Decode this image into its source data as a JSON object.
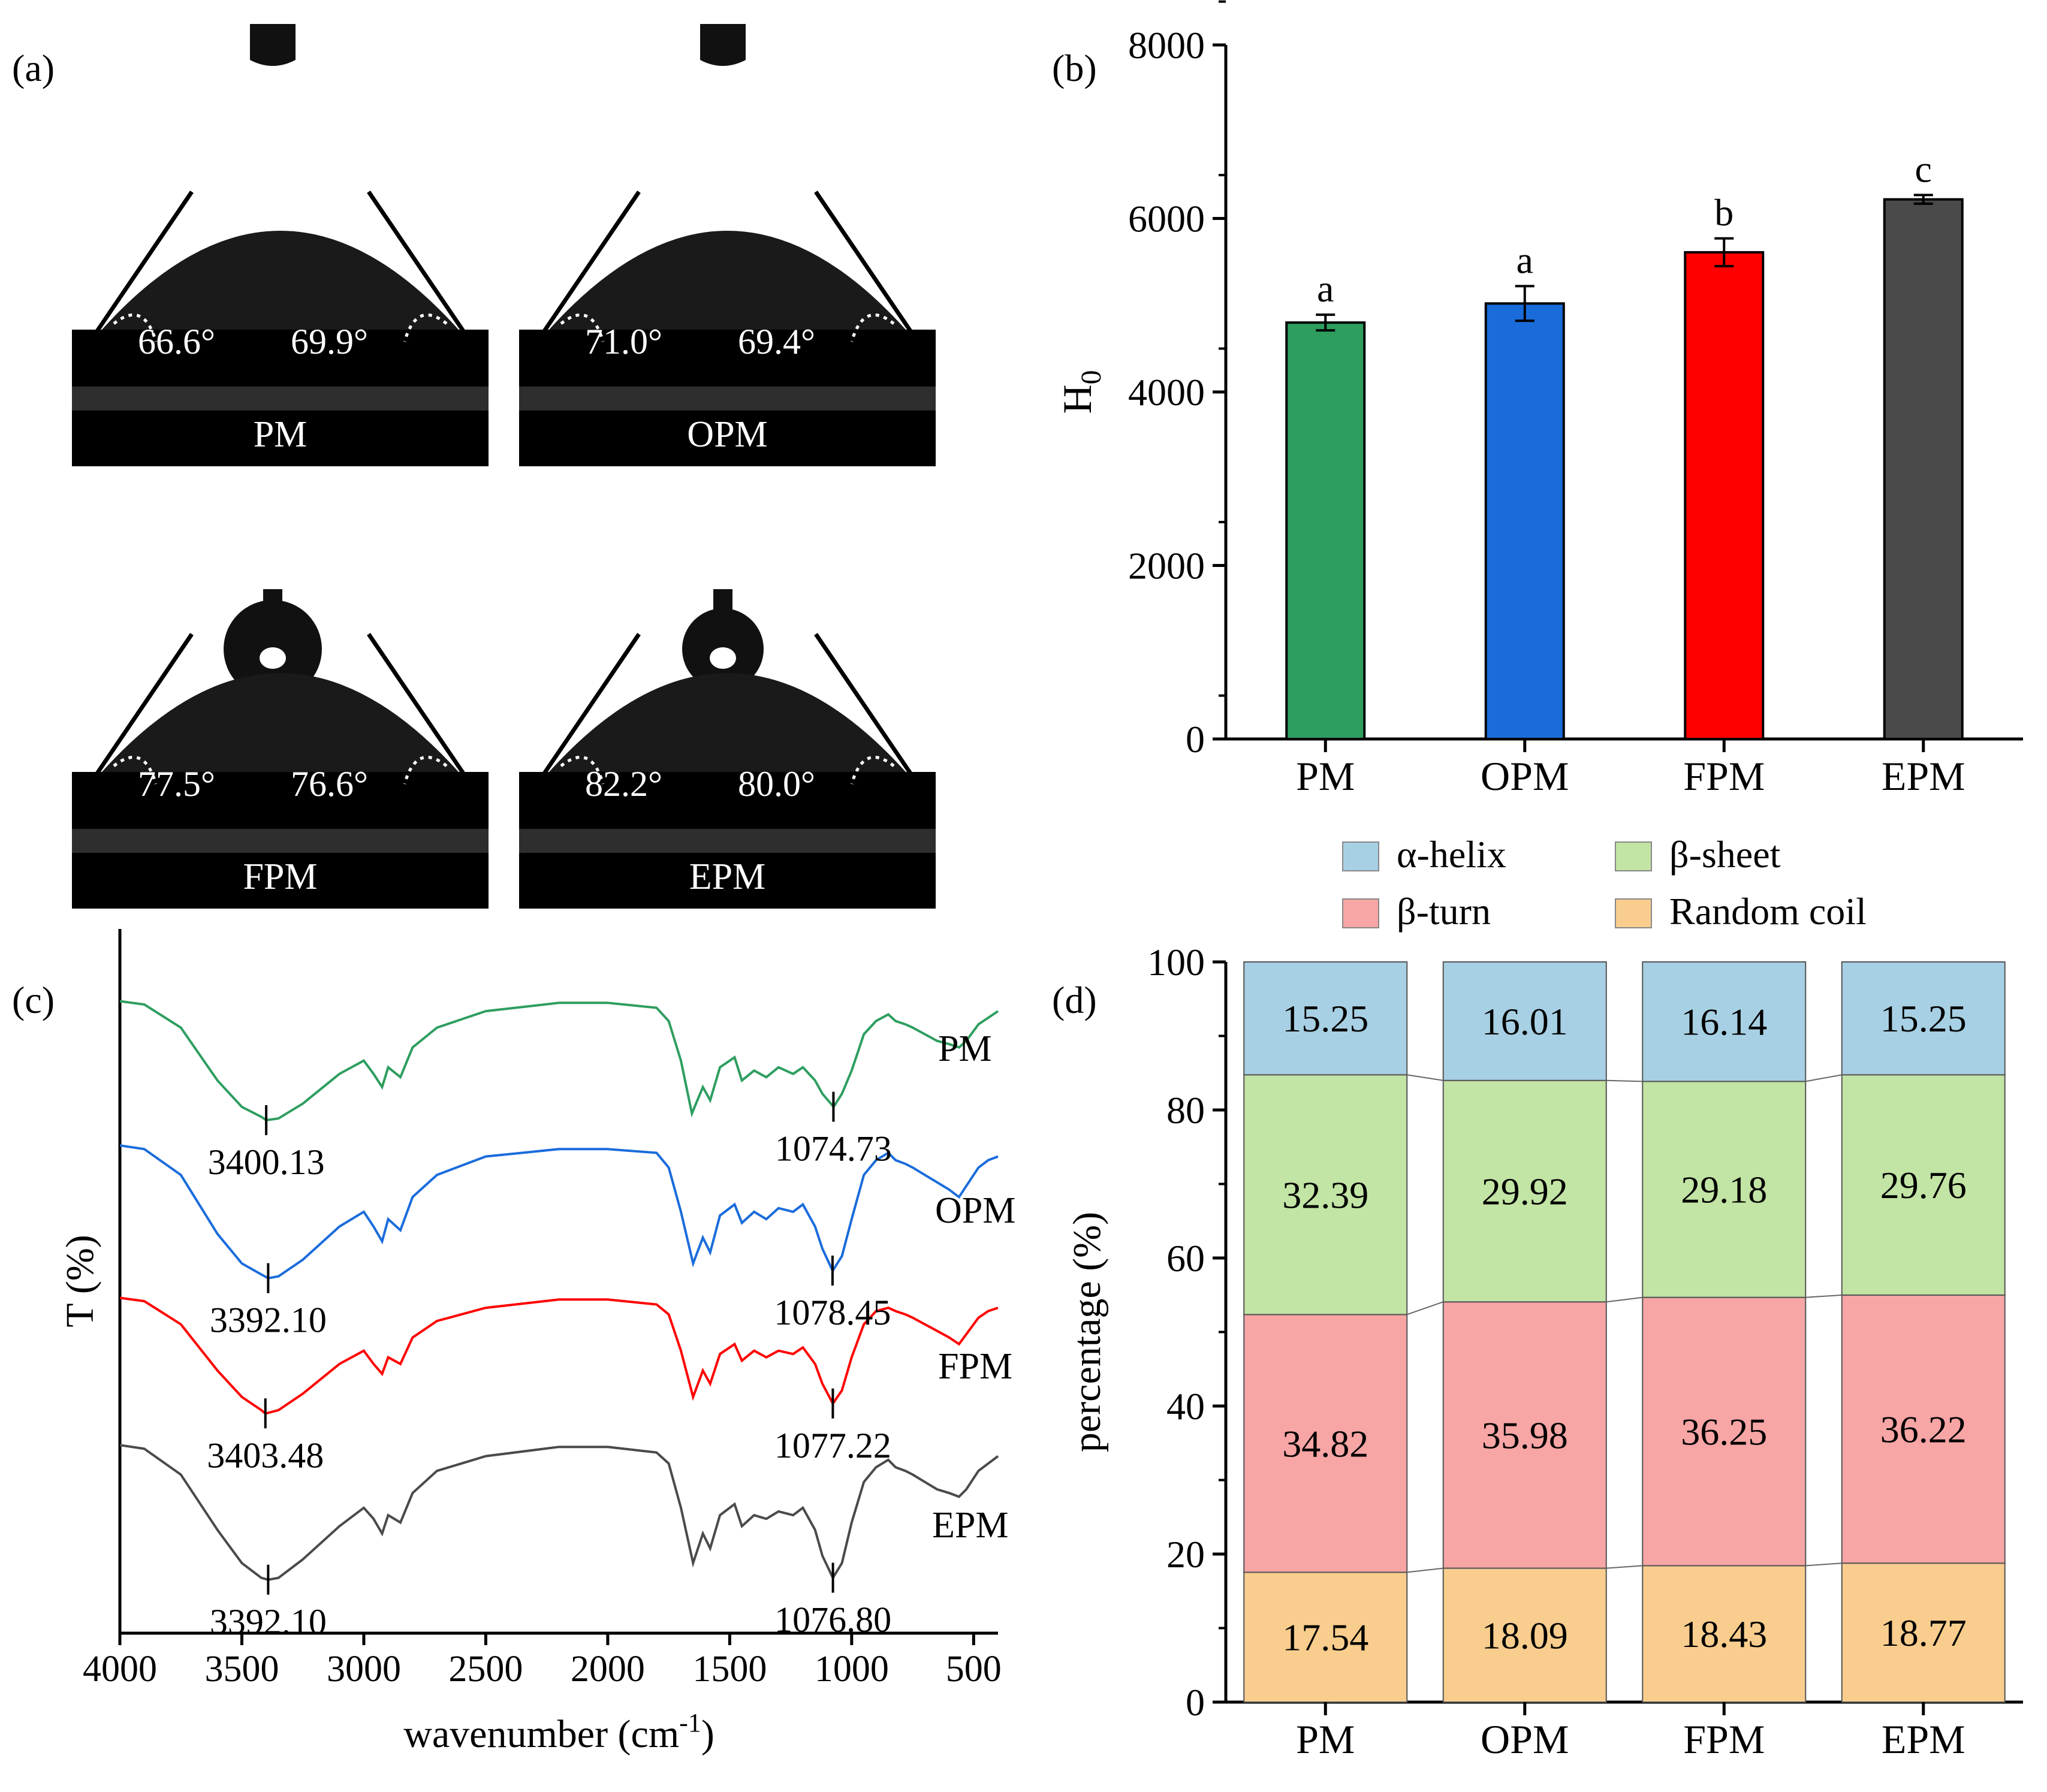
{
  "panel_labels": {
    "a": "(a)",
    "b": "(b)",
    "c": "(c)",
    "d": "(d)"
  },
  "colors": {
    "PM": "#2e9e5f",
    "OPM": "#1a6cdb",
    "FPM": "#ff0000",
    "EPM": "#4a4a4a",
    "alpha_helix": "#a8d0e4",
    "beta_sheet": "#c2e4a4",
    "beta_turn": "#f7a5a5",
    "random_coil": "#f8cd8d",
    "photo_bg": "#000000",
    "droplet": "#1a1a1a",
    "substrate": "#3a3a3a"
  },
  "contact_angle": {
    "samples": [
      {
        "name": "PM",
        "left": "66.6°",
        "right": "69.9°"
      },
      {
        "name": "OPM",
        "left": "71.0°",
        "right": "69.4°"
      },
      {
        "name": "FPM",
        "left": "77.5°",
        "right": "76.6°"
      },
      {
        "name": "EPM",
        "left": "82.2°",
        "right": "80.0°"
      }
    ]
  },
  "chart_data": [
    {
      "panel": "b",
      "type": "bar",
      "title": "",
      "xlabel": "",
      "ylabel": "H",
      "ylabel_sub": "0",
      "categories": [
        "PM",
        "OPM",
        "FPM",
        "EPM"
      ],
      "values": [
        4800,
        5020,
        5610,
        6220
      ],
      "errors": [
        90,
        200,
        160,
        50
      ],
      "letters": [
        "a",
        "a",
        "b",
        "c"
      ],
      "ylim": [
        0,
        8000
      ],
      "yticks": [
        "0",
        "2000",
        "4000",
        "6000",
        "8000"
      ],
      "grid": false
    },
    {
      "panel": "c",
      "type": "line",
      "title": "",
      "xlabel": "wavenumber (cm",
      "xlabel_sup": "-1",
      "xlabel_end": ")",
      "ylabel": "T (%)",
      "xlim": [
        4000,
        400
      ],
      "xticks": [
        "4000",
        "3500",
        "3000",
        "2500",
        "2000",
        "1500",
        "1000",
        "500"
      ],
      "series": [
        {
          "name": "PM",
          "offset": 0,
          "points": [
            [
              4000,
              96
            ],
            [
              3900,
              95
            ],
            [
              3750,
              88
            ],
            [
              3600,
              72
            ],
            [
              3500,
              64
            ],
            [
              3420,
              61
            ],
            [
              3400,
              60
            ],
            [
              3350,
              60.5
            ],
            [
              3250,
              65
            ],
            [
              3100,
              74
            ],
            [
              3000,
              78
            ],
            [
              2960,
              74
            ],
            [
              2925,
              70
            ],
            [
              2900,
              76
            ],
            [
              2850,
              73
            ],
            [
              2800,
              82
            ],
            [
              2700,
              88
            ],
            [
              2500,
              93
            ],
            [
              2200,
              95.5
            ],
            [
              2000,
              95.5
            ],
            [
              1800,
              94
            ],
            [
              1750,
              90
            ],
            [
              1700,
              78
            ],
            [
              1655,
              62
            ],
            [
              1610,
              70
            ],
            [
              1580,
              66
            ],
            [
              1540,
              76
            ],
            [
              1480,
              79
            ],
            [
              1450,
              72
            ],
            [
              1400,
              75
            ],
            [
              1350,
              73
            ],
            [
              1300,
              76
            ],
            [
              1240,
              74
            ],
            [
              1200,
              76
            ],
            [
              1150,
              72
            ],
            [
              1120,
              68
            ],
            [
              1074,
              64
            ],
            [
              1040,
              68
            ],
            [
              1000,
              75
            ],
            [
              950,
              86
            ],
            [
              900,
              90
            ],
            [
              850,
              92
            ],
            [
              820,
              90
            ],
            [
              780,
              89
            ],
            [
              750,
              88
            ],
            [
              700,
              86
            ],
            [
              650,
              84
            ],
            [
              600,
              83
            ],
            [
              560,
              82
            ],
            [
              530,
              84
            ],
            [
              480,
              89
            ],
            [
              440,
              91
            ],
            [
              400,
              93
            ]
          ]
        },
        {
          "name": "OPM",
          "offset": 0,
          "points": [
            [
              4000,
              96
            ],
            [
              3900,
              95
            ],
            [
              3750,
              88
            ],
            [
              3600,
              72
            ],
            [
              3500,
              64
            ],
            [
              3420,
              61
            ],
            [
              3392,
              60
            ],
            [
              3350,
              60.5
            ],
            [
              3250,
              65
            ],
            [
              3100,
              74
            ],
            [
              3000,
              78
            ],
            [
              2960,
              74
            ],
            [
              2925,
              70
            ],
            [
              2900,
              76
            ],
            [
              2850,
              73
            ],
            [
              2800,
              82
            ],
            [
              2700,
              88
            ],
            [
              2500,
              93
            ],
            [
              2200,
              95
            ],
            [
              2000,
              95
            ],
            [
              1800,
              94
            ],
            [
              1750,
              90
            ],
            [
              1700,
              78
            ],
            [
              1650,
              64
            ],
            [
              1610,
              71
            ],
            [
              1580,
              67
            ],
            [
              1540,
              77
            ],
            [
              1480,
              80
            ],
            [
              1450,
              75
            ],
            [
              1400,
              78
            ],
            [
              1350,
              76
            ],
            [
              1300,
              79
            ],
            [
              1240,
              78
            ],
            [
              1200,
              80
            ],
            [
              1150,
              74
            ],
            [
              1120,
              68
            ],
            [
              1078,
              62
            ],
            [
              1040,
              66
            ],
            [
              1000,
              76
            ],
            [
              950,
              88
            ],
            [
              900,
              92
            ],
            [
              850,
              94
            ],
            [
              820,
              92
            ],
            [
              780,
              91
            ],
            [
              750,
              90
            ],
            [
              700,
              88
            ],
            [
              650,
              86
            ],
            [
              600,
              84
            ],
            [
              560,
              82
            ],
            [
              530,
              85
            ],
            [
              480,
              90
            ],
            [
              440,
              92
            ],
            [
              400,
              93
            ]
          ]
        },
        {
          "name": "FPM",
          "offset": 0,
          "points": [
            [
              4000,
              96
            ],
            [
              3900,
              95
            ],
            [
              3750,
              88
            ],
            [
              3600,
              74
            ],
            [
              3500,
              66
            ],
            [
              3420,
              62
            ],
            [
              3403,
              61
            ],
            [
              3350,
              62
            ],
            [
              3250,
              67
            ],
            [
              3100,
              76
            ],
            [
              3000,
              80
            ],
            [
              2960,
              76
            ],
            [
              2925,
              73
            ],
            [
              2900,
              78
            ],
            [
              2850,
              76
            ],
            [
              2800,
              84
            ],
            [
              2700,
              89
            ],
            [
              2500,
              93
            ],
            [
              2200,
              95.5
            ],
            [
              2000,
              95.5
            ],
            [
              1800,
              94
            ],
            [
              1750,
              91
            ],
            [
              1700,
              80
            ],
            [
              1650,
              66
            ],
            [
              1610,
              74
            ],
            [
              1580,
              70
            ],
            [
              1540,
              79
            ],
            [
              1480,
              82
            ],
            [
              1450,
              77
            ],
            [
              1400,
              80
            ],
            [
              1350,
              78
            ],
            [
              1300,
              80
            ],
            [
              1240,
              79
            ],
            [
              1200,
              81
            ],
            [
              1150,
              76
            ],
            [
              1120,
              70
            ],
            [
              1077,
              64
            ],
            [
              1040,
              68
            ],
            [
              1000,
              78
            ],
            [
              950,
              88
            ],
            [
              900,
              92
            ],
            [
              850,
              93
            ],
            [
              820,
              92
            ],
            [
              780,
              91
            ],
            [
              750,
              90
            ],
            [
              700,
              88
            ],
            [
              650,
              86
            ],
            [
              600,
              84
            ],
            [
              560,
              82
            ],
            [
              530,
              85
            ],
            [
              480,
              90
            ],
            [
              440,
              92
            ],
            [
              400,
              93
            ]
          ]
        },
        {
          "name": "EPM",
          "offset": 0,
          "points": [
            [
              4000,
              96
            ],
            [
              3900,
              95
            ],
            [
              3750,
              88
            ],
            [
              3600,
              73
            ],
            [
              3500,
              64
            ],
            [
              3420,
              60
            ],
            [
              3392,
              59.5
            ],
            [
              3350,
              60
            ],
            [
              3250,
              65
            ],
            [
              3100,
              74
            ],
            [
              3000,
              79
            ],
            [
              2960,
              76
            ],
            [
              2925,
              72
            ],
            [
              2900,
              77
            ],
            [
              2850,
              75
            ],
            [
              2800,
              83
            ],
            [
              2700,
              89
            ],
            [
              2500,
              93
            ],
            [
              2200,
              95.5
            ],
            [
              2000,
              95.5
            ],
            [
              1800,
              94
            ],
            [
              1750,
              91
            ],
            [
              1700,
              79
            ],
            [
              1650,
              64
            ],
            [
              1610,
              72
            ],
            [
              1580,
              68
            ],
            [
              1540,
              77
            ],
            [
              1480,
              80
            ],
            [
              1450,
              74
            ],
            [
              1400,
              77
            ],
            [
              1350,
              76
            ],
            [
              1300,
              78
            ],
            [
              1240,
              77
            ],
            [
              1200,
              79
            ],
            [
              1150,
              73
            ],
            [
              1120,
              66
            ],
            [
              1077,
              60
            ],
            [
              1040,
              64
            ],
            [
              1000,
              75
            ],
            [
              950,
              86
            ],
            [
              900,
              90
            ],
            [
              850,
              92
            ],
            [
              820,
              90
            ],
            [
              780,
              89
            ],
            [
              750,
              88
            ],
            [
              700,
              86
            ],
            [
              650,
              84
            ],
            [
              600,
              83
            ],
            [
              560,
              82
            ],
            [
              530,
              84
            ],
            [
              480,
              89
            ],
            [
              440,
              91
            ],
            [
              400,
              93
            ]
          ]
        }
      ],
      "annotations": [
        {
          "series": "PM",
          "label": "3400.13",
          "x": 3400.13
        },
        {
          "series": "PM",
          "label": "1074.73",
          "x": 1074.73
        },
        {
          "series": "OPM",
          "label": "3392.10",
          "x": 3392.1
        },
        {
          "series": "OPM",
          "label": "1078.45",
          "x": 1078.45
        },
        {
          "series": "FPM",
          "label": "3403.48",
          "x": 3403.48
        },
        {
          "series": "FPM",
          "label": "1077.22",
          "x": 1077.22
        },
        {
          "series": "EPM",
          "label": "3392.10",
          "x": 3392.1
        },
        {
          "series": "EPM",
          "label": "1076.80",
          "x": 1076.8
        }
      ]
    },
    {
      "panel": "d",
      "type": "bar",
      "stacked": true,
      "title": "",
      "xlabel": "",
      "ylabel": "percentage (%)",
      "categories": [
        "PM",
        "OPM",
        "FPM",
        "EPM"
      ],
      "ylim": [
        0,
        100
      ],
      "yticks": [
        "0",
        "20",
        "40",
        "60",
        "80",
        "100"
      ],
      "legend_position": "top",
      "series": [
        {
          "name": "Random coil",
          "key": "random_coil",
          "values": [
            17.54,
            18.09,
            18.43,
            18.77
          ]
        },
        {
          "name": "β-turn",
          "key": "beta_turn",
          "values": [
            34.82,
            35.98,
            36.25,
            36.22
          ]
        },
        {
          "name": "β-sheet",
          "key": "beta_sheet",
          "values": [
            32.39,
            29.92,
            29.18,
            29.76
          ]
        },
        {
          "name": "α-helix",
          "key": "alpha_helix",
          "values": [
            15.25,
            16.01,
            16.14,
            15.25
          ]
        }
      ],
      "labels": [
        [
          "17.54",
          "18.09",
          "18.43",
          "18.77"
        ],
        [
          "34.82",
          "35.98",
          "36.25",
          "36.22"
        ],
        [
          "32.39",
          "29.92",
          "29.18",
          "29.76"
        ],
        [
          "15.25",
          "16.01",
          "16.14",
          "15.25"
        ]
      ]
    }
  ]
}
